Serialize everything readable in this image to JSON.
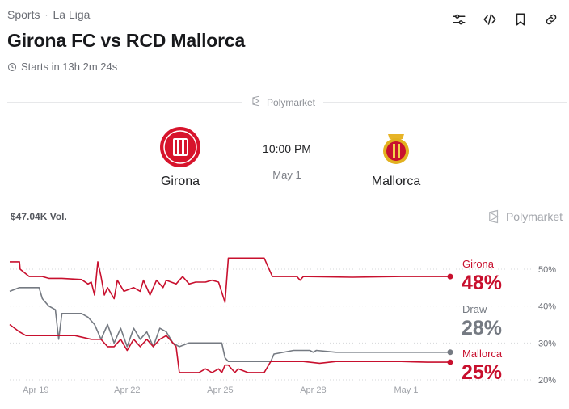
{
  "breadcrumb": {
    "sport": "Sports",
    "separator": "·",
    "league": "La Liga"
  },
  "toolbar": {
    "icons": [
      "sliders-icon",
      "embed-code-icon",
      "bookmark-icon",
      "link-icon"
    ]
  },
  "title": "Girona FC vs RCD Mallorca",
  "starts": "Starts in 13h 2m 24s",
  "source_label": "Polymarket",
  "home": {
    "name": "Girona",
    "color": "#d7142c"
  },
  "away": {
    "name": "Mallorca",
    "color": "#c8102e"
  },
  "kickoff": {
    "time": "10:00 PM",
    "date": "May 1"
  },
  "volume": "$47.04K Vol.",
  "chart_data": {
    "type": "line",
    "x_ticks": [
      "Apr 19",
      "Apr 22",
      "Apr 25",
      "Apr 28",
      "May 1"
    ],
    "y_ticks": [
      "50%",
      "40%",
      "30%",
      "20%"
    ],
    "ylim": [
      20,
      50
    ],
    "grid": true,
    "series": [
      {
        "name": "Girona",
        "pct": "48%",
        "color": "#c8102e",
        "values": [
          [
            0,
            52
          ],
          [
            0.3,
            52
          ],
          [
            0.32,
            50
          ],
          [
            0.6,
            48
          ],
          [
            1,
            48
          ],
          [
            1.2,
            47.5
          ],
          [
            1.6,
            47.5
          ],
          [
            2.2,
            47.2
          ],
          [
            2.4,
            46
          ],
          [
            2.5,
            46.5
          ],
          [
            2.6,
            43
          ],
          [
            2.7,
            52
          ],
          [
            2.8,
            48
          ],
          [
            2.9,
            43
          ],
          [
            3.0,
            45
          ],
          [
            3.2,
            42
          ],
          [
            3.3,
            47
          ],
          [
            3.5,
            44
          ],
          [
            3.8,
            45
          ],
          [
            4.0,
            44
          ],
          [
            4.1,
            47
          ],
          [
            4.3,
            43
          ],
          [
            4.5,
            47
          ],
          [
            4.7,
            45
          ],
          [
            4.8,
            47
          ],
          [
            5.1,
            46
          ],
          [
            5.3,
            48
          ],
          [
            5.5,
            46
          ],
          [
            5.7,
            46.5
          ],
          [
            6.0,
            46.5
          ],
          [
            6.2,
            47
          ],
          [
            6.4,
            46.5
          ],
          [
            6.6,
            41
          ],
          [
            6.7,
            53
          ],
          [
            7.0,
            53
          ],
          [
            7.8,
            53
          ],
          [
            7.9,
            51
          ],
          [
            8.05,
            48
          ],
          [
            8.8,
            48
          ],
          [
            8.9,
            47
          ],
          [
            9.0,
            48
          ],
          [
            10.5,
            47.8
          ],
          [
            12,
            48
          ],
          [
            13,
            48
          ],
          [
            13.5,
            48
          ]
        ]
      },
      {
        "name": "Draw",
        "pct": "28%",
        "color": "#757a82",
        "values": [
          [
            0,
            44
          ],
          [
            0.3,
            45
          ],
          [
            0.9,
            45
          ],
          [
            1.0,
            42
          ],
          [
            1.2,
            40
          ],
          [
            1.4,
            39
          ],
          [
            1.5,
            31
          ],
          [
            1.6,
            38
          ],
          [
            1.8,
            38
          ],
          [
            2.2,
            38
          ],
          [
            2.4,
            37
          ],
          [
            2.6,
            35
          ],
          [
            2.7,
            33
          ],
          [
            2.8,
            31
          ],
          [
            3.0,
            35
          ],
          [
            3.2,
            30
          ],
          [
            3.4,
            34
          ],
          [
            3.6,
            29
          ],
          [
            3.8,
            34
          ],
          [
            4.0,
            31
          ],
          [
            4.2,
            33
          ],
          [
            4.4,
            29
          ],
          [
            4.6,
            34
          ],
          [
            4.8,
            33
          ],
          [
            5.0,
            30
          ],
          [
            5.2,
            29
          ],
          [
            5.5,
            30
          ],
          [
            6.0,
            30
          ],
          [
            6.5,
            30
          ],
          [
            6.6,
            26
          ],
          [
            6.7,
            25
          ],
          [
            7.5,
            25
          ],
          [
            8.0,
            25
          ],
          [
            8.1,
            27
          ],
          [
            8.7,
            28
          ],
          [
            9.2,
            28
          ],
          [
            9.3,
            27.5
          ],
          [
            9.4,
            28
          ],
          [
            10,
            27.5
          ],
          [
            12,
            27.5
          ],
          [
            13,
            27.5
          ],
          [
            13.5,
            27.5
          ]
        ]
      },
      {
        "name": "Mallorca",
        "pct": "25%",
        "color": "#c8102e",
        "values": [
          [
            0,
            35
          ],
          [
            0.3,
            33
          ],
          [
            0.5,
            32
          ],
          [
            0.9,
            32
          ],
          [
            1.5,
            32
          ],
          [
            2.0,
            32
          ],
          [
            2.5,
            31
          ],
          [
            2.8,
            31
          ],
          [
            3.0,
            29
          ],
          [
            3.2,
            29
          ],
          [
            3.4,
            31
          ],
          [
            3.6,
            28
          ],
          [
            3.8,
            31
          ],
          [
            4.0,
            29
          ],
          [
            4.2,
            31
          ],
          [
            4.4,
            29
          ],
          [
            4.6,
            31
          ],
          [
            4.8,
            32
          ],
          [
            5.0,
            30
          ],
          [
            5.1,
            29
          ],
          [
            5.2,
            22
          ],
          [
            5.5,
            22
          ],
          [
            5.8,
            22
          ],
          [
            6.0,
            23
          ],
          [
            6.2,
            22
          ],
          [
            6.4,
            23
          ],
          [
            6.5,
            22
          ],
          [
            6.6,
            24
          ],
          [
            6.7,
            24
          ],
          [
            6.9,
            22
          ],
          [
            7.0,
            23
          ],
          [
            7.3,
            22
          ],
          [
            7.8,
            22
          ],
          [
            8.0,
            25
          ],
          [
            9.0,
            25
          ],
          [
            9.5,
            24.5
          ],
          [
            10,
            25
          ],
          [
            11,
            25
          ],
          [
            12,
            25
          ],
          [
            12.8,
            24.8
          ],
          [
            13.5,
            24.8
          ]
        ]
      }
    ]
  }
}
